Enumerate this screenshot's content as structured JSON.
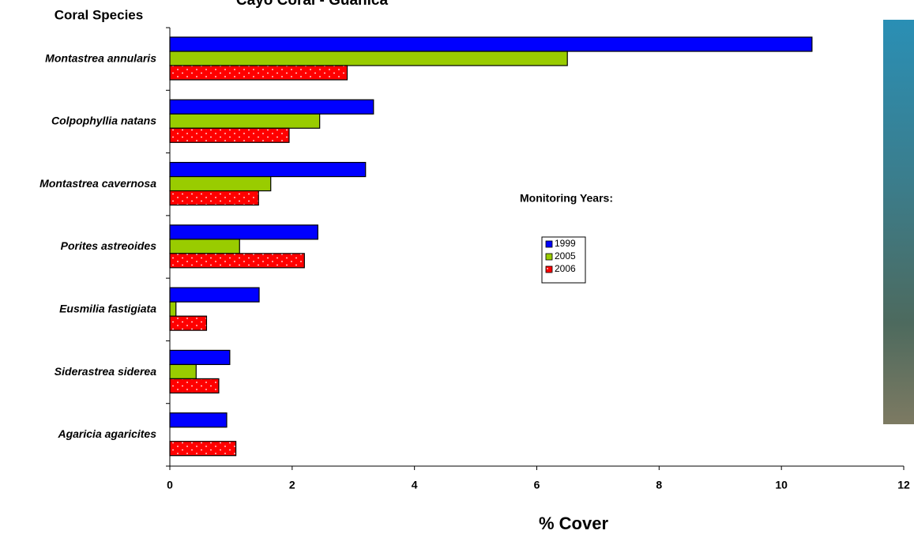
{
  "chart_data": {
    "type": "barh",
    "title": "Cayo Coral - Guanica",
    "y_label": "Coral Species",
    "x_label": "% Cover",
    "legend_title": "Monitoring Years:",
    "categories": [
      "Montastrea annularis",
      "Colpophyllia natans",
      "Montastrea cavernosa",
      "Porites astreoides",
      "Eusmilia fastigiata",
      "Siderastrea siderea",
      "Agaricia agaricites"
    ],
    "series": [
      {
        "name": "1999",
        "color": "#0000ff",
        "values": [
          10.5,
          3.33,
          3.2,
          2.42,
          1.46,
          0.98,
          0.93
        ]
      },
      {
        "name": "2005",
        "color": "#99cc00",
        "values": [
          6.5,
          2.45,
          1.65,
          1.14,
          0.1,
          0.43,
          null
        ]
      },
      {
        "name": "2006",
        "color": "#ff0000",
        "pattern": "dots",
        "values": [
          2.9,
          1.95,
          1.45,
          2.2,
          0.6,
          0.8,
          1.08
        ]
      }
    ],
    "xlim": [
      0,
      12
    ],
    "xticks": [
      0,
      2,
      4,
      6,
      8,
      10,
      12
    ]
  }
}
